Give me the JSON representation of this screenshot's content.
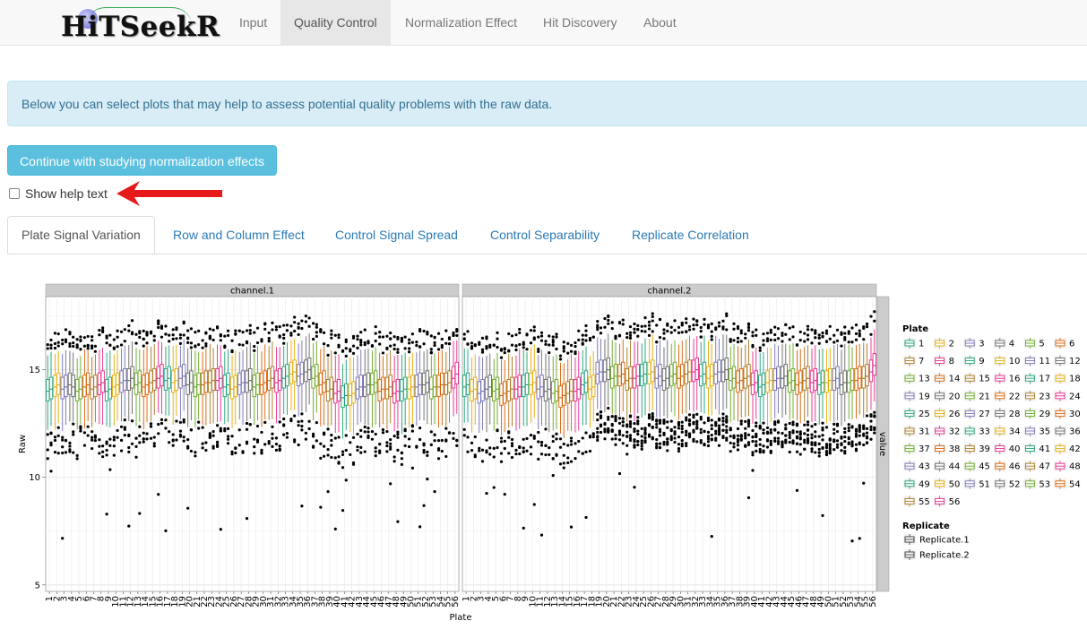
{
  "brand": {
    "name": "HiTSeekR"
  },
  "nav": [
    {
      "label": "Input",
      "active": false
    },
    {
      "label": "Quality Control",
      "active": true
    },
    {
      "label": "Normalization Effect",
      "active": false
    },
    {
      "label": "Hit Discovery",
      "active": false
    },
    {
      "label": "About",
      "active": false
    }
  ],
  "alert": {
    "text": "Below you can select plots that may help to assess potential quality problems with the raw data."
  },
  "continue_button": {
    "label": "Continue with studying normalization effects"
  },
  "help_checkbox": {
    "label": "Show help text",
    "checked": false
  },
  "annotation": {
    "arrow_color": "#e8191b"
  },
  "tabs": [
    {
      "label": "Plate Signal Variation",
      "active": true
    },
    {
      "label": "Row and Column Effect",
      "active": false
    },
    {
      "label": "Control Signal Spread",
      "active": false
    },
    {
      "label": "Control Separability",
      "active": false
    },
    {
      "label": "Replicate Correlation",
      "active": false
    }
  ],
  "chart_data": {
    "type": "boxplot",
    "facets": [
      "channel.1",
      "channel.2"
    ],
    "strip_right": "value",
    "xlabel": "Plate",
    "ylabel": "Raw",
    "x_categories": [
      "1",
      "2",
      "3",
      "4",
      "5",
      "6",
      "7",
      "8",
      "9",
      "10",
      "11",
      "12",
      "13",
      "14",
      "15",
      "16",
      "17",
      "18",
      "19",
      "20",
      "21",
      "22",
      "23",
      "24",
      "25",
      "26",
      "27",
      "28",
      "29",
      "30",
      "31",
      "32",
      "33",
      "34",
      "35",
      "36",
      "37",
      "38",
      "39",
      "40",
      "41",
      "42",
      "43",
      "44",
      "45",
      "46",
      "47",
      "48",
      "49",
      "50",
      "51",
      "52",
      "53",
      "54",
      "55",
      "56"
    ],
    "y_ticks": [
      5,
      10,
      15
    ],
    "ylim": [
      4.7,
      18.4
    ],
    "grid": true,
    "palette": [
      "#1b9e77",
      "#e6ab02",
      "#7570b3",
      "#666666",
      "#66a61e",
      "#d95f02",
      "#a6761d",
      "#e7298a",
      "#1b9e77",
      "#e6ab02",
      "#7570b3",
      "#666666",
      "#66a61e",
      "#d95f02",
      "#a6761d",
      "#e7298a",
      "#1b9e77",
      "#e6ab02",
      "#7570b3",
      "#666666",
      "#66a61e",
      "#d95f02",
      "#a6761d",
      "#e7298a",
      "#1b9e77",
      "#e6ab02",
      "#7570b3",
      "#666666",
      "#66a61e",
      "#d95f02",
      "#a6761d",
      "#e7298a",
      "#1b9e77",
      "#e6ab02",
      "#7570b3",
      "#666666",
      "#66a61e",
      "#d95f02",
      "#a6761d",
      "#e7298a",
      "#1b9e77",
      "#e6ab02",
      "#7570b3",
      "#666666",
      "#66a61e",
      "#d95f02",
      "#a6761d",
      "#e7298a",
      "#1b9e77",
      "#e6ab02",
      "#7570b3",
      "#666666",
      "#66a61e",
      "#d95f02",
      "#a6761d",
      "#e7298a"
    ],
    "series": [
      {
        "facet": "channel.1",
        "replicate": "Replicate.1",
        "medians": [
          14.0,
          14.2,
          14.1,
          14.3,
          14.0,
          14.2,
          14.1,
          14.3,
          14.0,
          14.2,
          14.4,
          14.5,
          14.3,
          14.2,
          14.4,
          14.6,
          14.5,
          14.4,
          14.6,
          14.3,
          14.2,
          14.3,
          14.4,
          14.5,
          14.2,
          14.1,
          14.3,
          14.4,
          14.2,
          14.3,
          14.5,
          14.4,
          14.6,
          14.8,
          14.7,
          14.9,
          14.6,
          14.3,
          14.0,
          13.9,
          13.7,
          13.8,
          14.1,
          14.2,
          14.3,
          14.0,
          14.1,
          13.9,
          14.0,
          14.1,
          14.2,
          14.3,
          14.1,
          14.2,
          14.3,
          14.6
        ]
      },
      {
        "facet": "channel.1",
        "replicate": "Replicate.2",
        "medians": [
          14.1,
          14.3,
          14.2,
          14.2,
          14.1,
          14.3,
          14.2,
          14.4,
          14.1,
          14.3,
          14.5,
          14.6,
          14.4,
          14.3,
          14.5,
          14.7,
          14.6,
          14.5,
          14.7,
          14.4,
          14.3,
          14.4,
          14.5,
          14.6,
          14.3,
          14.2,
          14.4,
          14.5,
          14.3,
          14.4,
          14.6,
          14.5,
          14.7,
          14.9,
          14.8,
          15.0,
          14.7,
          14.4,
          14.1,
          14.0,
          13.8,
          13.9,
          14.2,
          14.3,
          14.4,
          14.1,
          14.2,
          14.0,
          14.1,
          14.2,
          14.3,
          14.4,
          14.2,
          14.3,
          14.4,
          14.8
        ]
      },
      {
        "facet": "channel.2",
        "replicate": "Replicate.1",
        "medians": [
          14.2,
          14.0,
          13.9,
          14.1,
          14.0,
          13.8,
          14.0,
          14.1,
          14.2,
          14.3,
          14.1,
          14.0,
          13.9,
          13.7,
          13.9,
          14.0,
          14.3,
          14.1,
          14.8,
          14.9,
          14.6,
          14.7,
          14.5,
          14.6,
          14.7,
          14.8,
          14.6,
          14.5,
          14.7,
          14.6,
          14.8,
          14.9,
          14.7,
          14.6,
          14.8,
          14.9,
          14.5,
          14.4,
          14.6,
          14.3,
          14.2,
          14.4,
          14.5,
          14.6,
          14.4,
          14.3,
          14.5,
          14.4,
          14.3,
          14.4,
          14.5,
          14.3,
          14.4,
          14.5,
          14.6,
          14.9
        ]
      },
      {
        "facet": "channel.2",
        "replicate": "Replicate.2",
        "medians": [
          14.3,
          14.1,
          14.0,
          14.2,
          14.1,
          13.9,
          14.1,
          14.2,
          14.3,
          14.4,
          14.2,
          14.1,
          14.0,
          13.8,
          14.0,
          14.1,
          14.4,
          14.2,
          14.9,
          15.0,
          14.7,
          14.8,
          14.6,
          14.7,
          14.8,
          14.9,
          14.7,
          14.6,
          14.8,
          14.7,
          14.9,
          15.0,
          14.8,
          14.7,
          14.9,
          15.0,
          14.6,
          14.5,
          14.7,
          14.4,
          14.3,
          14.5,
          14.6,
          14.7,
          14.5,
          14.4,
          14.6,
          14.5,
          14.4,
          14.5,
          14.6,
          14.4,
          14.5,
          14.6,
          14.7,
          15.2
        ]
      }
    ],
    "legend": {
      "placement": "right",
      "plate_title": "Plate",
      "plate_entries": [
        "1",
        "2",
        "3",
        "4",
        "5",
        "6",
        "7",
        "8",
        "9",
        "10",
        "11",
        "12",
        "13",
        "14",
        "15",
        "16",
        "17",
        "18",
        "19",
        "20",
        "21",
        "22",
        "23",
        "24",
        "25",
        "26",
        "27",
        "28",
        "29",
        "30",
        "31",
        "32",
        "33",
        "34",
        "35",
        "36",
        "37",
        "38",
        "39",
        "40",
        "41",
        "42",
        "43",
        "44",
        "45",
        "46",
        "47",
        "48",
        "49",
        "50",
        "51",
        "52",
        "53",
        "54",
        "55",
        "56"
      ],
      "replicate_title": "Replicate",
      "replicate_entries": [
        "Replicate.1",
        "Replicate.2"
      ]
    }
  }
}
